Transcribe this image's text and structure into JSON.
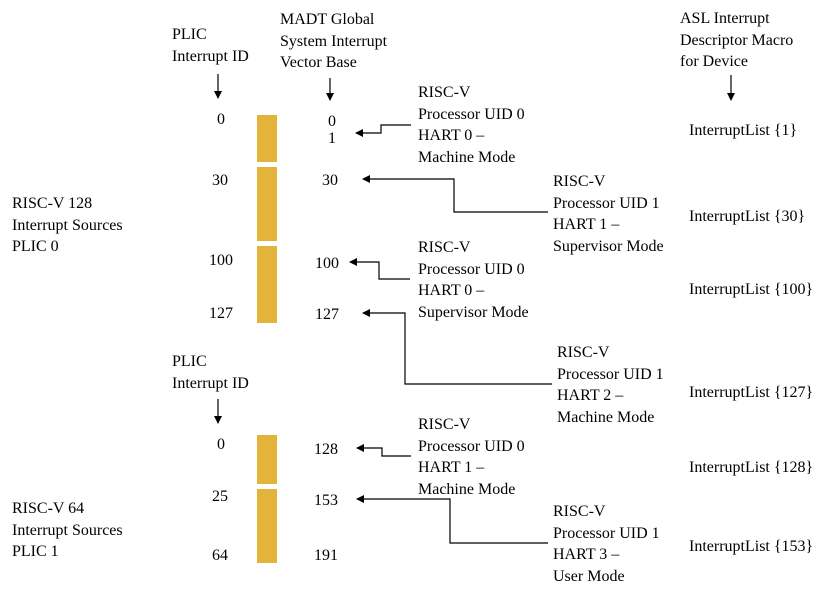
{
  "headers": {
    "plic_id_top": [
      "PLIC",
      "Interrupt ID"
    ],
    "madt": [
      "MADT Global",
      "System Interrupt",
      "Vector Base"
    ],
    "asl": [
      "ASL Interrupt",
      "Descriptor Macro",
      "for Device"
    ],
    "plic_id_bottom": [
      "PLIC",
      "Interrupt ID"
    ]
  },
  "plics": [
    {
      "label": [
        "RISC-V 128",
        "Interrupt Sources",
        "PLIC 0"
      ],
      "ids": [
        "0",
        "30",
        "100",
        "127"
      ]
    },
    {
      "label": [
        "RISC-V 64",
        "Interrupt Sources",
        "PLIC 1"
      ],
      "ids": [
        "0",
        "25",
        "64"
      ]
    }
  ],
  "gsi_values": [
    "0",
    "1",
    "30",
    "100",
    "127",
    "128",
    "153",
    "191"
  ],
  "processors": [
    [
      "RISC-V",
      "Processor UID 0",
      "HART 0 –",
      "Machine Mode"
    ],
    [
      "RISC-V",
      "Processor UID 1",
      "HART 1 –",
      "Supervisor Mode"
    ],
    [
      "RISC-V",
      "Processor UID 0",
      "HART 0 –",
      "Supervisor Mode"
    ],
    [
      "RISC-V",
      "Processor UID 1",
      "HART 2 –",
      "Machine Mode"
    ],
    [
      "RISC-V",
      "Processor UID 0",
      "HART 1 –",
      "Machine Mode"
    ],
    [
      "RISC-V",
      "Processor UID 1",
      "HART 3 –",
      "User Mode"
    ]
  ],
  "interrupt_lists": [
    "InterruptList {1}",
    "InterruptList {30}",
    "InterruptList {100}",
    "InterruptList {127}",
    "InterruptList {128}",
    "InterruptList {153}"
  ],
  "colors": {
    "bar": "#e3b33a",
    "line": "#000000"
  }
}
